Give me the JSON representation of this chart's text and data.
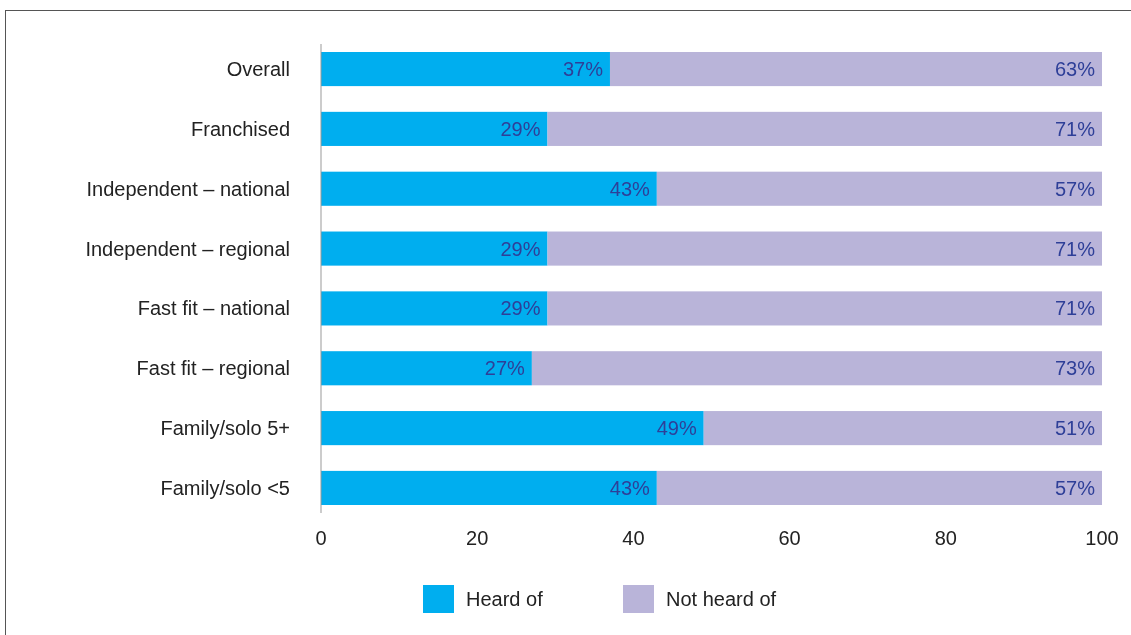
{
  "chart_data": {
    "type": "bar",
    "orientation": "horizontal",
    "stacked": true,
    "categories": [
      "Overall",
      "Franchised",
      "Independent – national",
      "Independent – regional",
      "Fast fit – national",
      "Fast fit – regional",
      "Family/solo 5+",
      "Family/solo <5"
    ],
    "series": [
      {
        "name": "Heard of",
        "color": "#00aeef",
        "values": [
          37,
          29,
          43,
          29,
          29,
          27,
          49,
          43
        ],
        "value_labels": [
          "37%",
          "29%",
          "43%",
          "29%",
          "29%",
          "27%",
          "49%",
          "43%"
        ]
      },
      {
        "name": "Not heard of",
        "color": "#b9b4d9",
        "values": [
          63,
          71,
          57,
          71,
          71,
          73,
          51,
          57
        ],
        "value_labels": [
          "63%",
          "71%",
          "57%",
          "71%",
          "71%",
          "73%",
          "51%",
          "57%"
        ]
      }
    ],
    "xlim": [
      0,
      100
    ],
    "xticks": [
      0,
      20,
      40,
      60,
      80,
      100
    ],
    "grid": false,
    "legend": "bottom"
  }
}
